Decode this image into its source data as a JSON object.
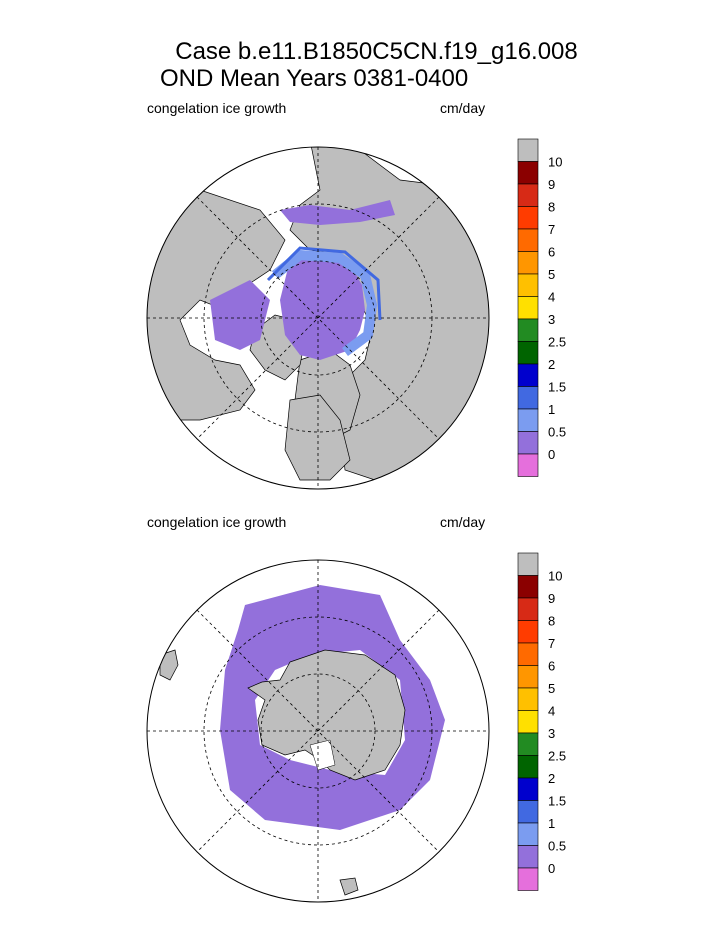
{
  "title": {
    "line1": "Case b.e11.B1850C5CN.f19_g16.008",
    "line2": "OND Mean   Years 0381-0400"
  },
  "colors": {
    "land": "#bebebe",
    "ocean": "#ffffff",
    "ice_0_05": "#9370db"
  },
  "panels": [
    {
      "field_label": "congelation ice growth",
      "units_label": "cm/day",
      "hemisphere": "north"
    },
    {
      "field_label": "congelation ice growth",
      "units_label": "cm/day",
      "hemisphere": "south"
    }
  ],
  "colorbar": {
    "labels": [
      "10",
      "9",
      "8",
      "7",
      "6",
      "5",
      "4",
      "3",
      "2.5",
      "2",
      "1.5",
      "1",
      "0.5",
      "0"
    ],
    "colors": [
      "#bebebe",
      "#8b0000",
      "#d72a16",
      "#ff3c00",
      "#ff6a00",
      "#ff9600",
      "#ffc000",
      "#ffe000",
      "#228b22",
      "#006400",
      "#0000cd",
      "#4169e1",
      "#7b9cf0",
      "#9370db",
      "#e56fdc"
    ]
  }
}
